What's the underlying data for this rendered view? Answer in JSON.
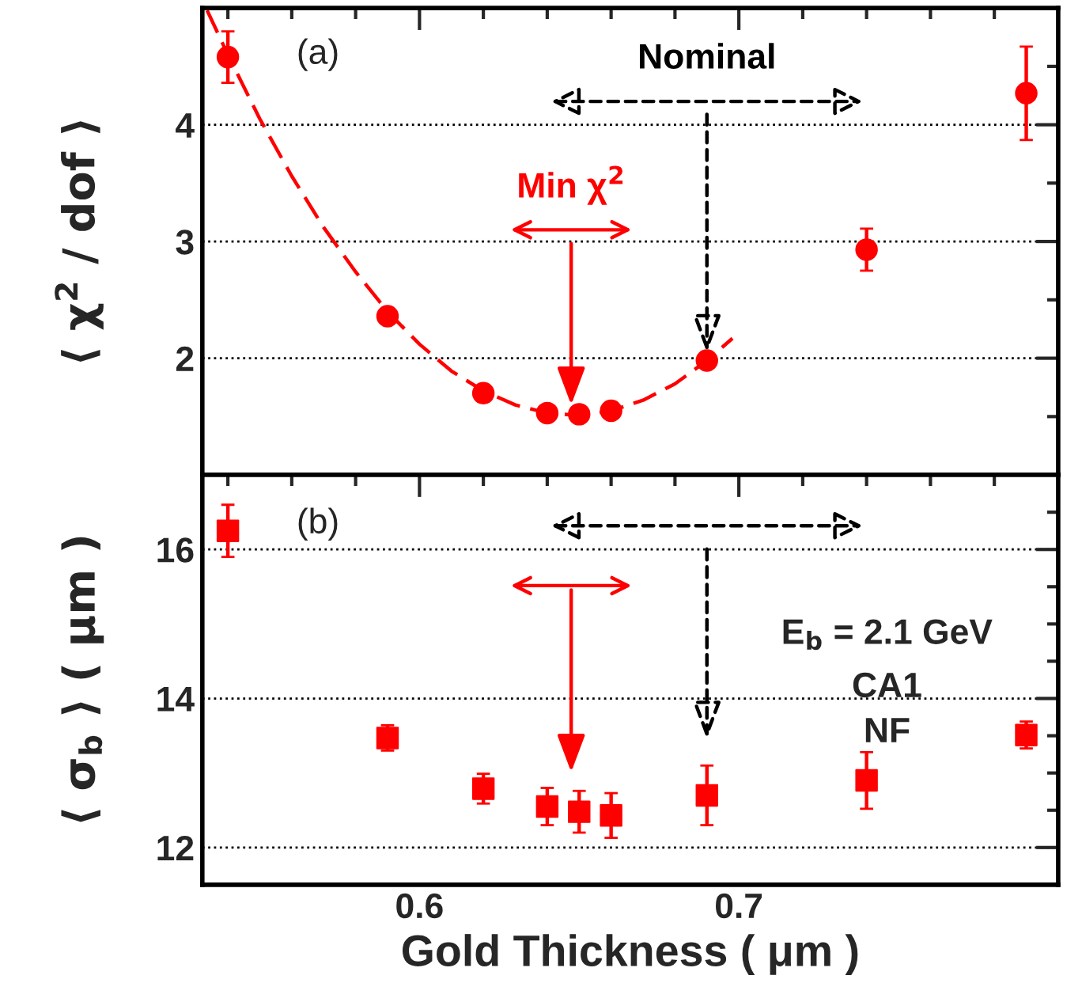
{
  "chart_data": [
    {
      "type": "scatter",
      "ylabel": "⟨ χ$^{2}$ / dof ⟩",
      "xlim": [
        0.532,
        0.8
      ],
      "ylim": [
        1,
        5
      ],
      "yticks": [
        {
          "value": 1.5,
          "label": null
        },
        2,
        {
          "value": 2.5,
          "label": null
        },
        3,
        {
          "value": 3.5,
          "label": null
        },
        4,
        {
          "value": 4.5,
          "label": null
        }
      ],
      "tick_labels": "y",
      "grid": "y",
      "series": [
        {
          "color": "#ff0000",
          "marker": "circle",
          "x": [
            0.54,
            0.59,
            0.62,
            0.64,
            0.65,
            0.66,
            0.69,
            0.74,
            0.79
          ],
          "values": [
            4.58,
            2.36,
            1.7,
            1.53,
            1.52,
            1.55,
            1.98,
            2.93,
            4.27
          ],
          "errors": [
            0.22,
            null,
            null,
            null,
            null,
            null,
            null,
            0.18,
            0.4
          ]
        },
        {
          "type": "line",
          "color": "#ff0000",
          "marker": "none",
          "line_style": "dashed",
          "x": [
            0.5335,
            0.54,
            0.55,
            0.56,
            0.57,
            0.58,
            0.59,
            0.6,
            0.61,
            0.62,
            0.63,
            0.64,
            0.65,
            0.66,
            0.67,
            0.68,
            0.69,
            0.698
          ],
          "values": [
            4.98,
            4.6,
            4.05,
            3.56,
            3.12,
            2.74,
            2.4,
            2.12,
            1.89,
            1.72,
            1.6,
            1.53,
            1.51,
            1.55,
            1.64,
            1.78,
            1.98,
            2.17
          ]
        }
      ],
      "annotations": [
        "(a)",
        {
          "text": "Min χ$^{2}$",
          "x": 0.6475,
          "y": 1.6
        },
        {
          "text": "Nominal",
          "x": 0.69,
          "y": 2.05
        }
      ]
    },
    {
      "type": "scatter",
      "xlabel": "Gold Thickness ( μm )",
      "ylabel": "⟨ σ$_{b}$ ⟩ ( μm )",
      "xlim": [
        0.532,
        0.8
      ],
      "ylim": [
        11.5,
        17
      ],
      "xticks": [
        {
          "value": 0.54,
          "label": null
        },
        {
          "value": 0.56,
          "label": null
        },
        {
          "value": 0.58,
          "label": null
        },
        0.6,
        {
          "value": 0.62,
          "label": null
        },
        {
          "value": 0.64,
          "label": null
        },
        {
          "value": 0.66,
          "label": null
        },
        {
          "value": 0.68,
          "label": null
        },
        0.7,
        {
          "value": 0.72,
          "label": null
        },
        {
          "value": 0.74,
          "label": null
        },
        {
          "value": 0.76,
          "label": null
        },
        {
          "value": 0.78,
          "label": null
        }
      ],
      "yticks": [
        12,
        {
          "value": 12.5,
          "label": null
        },
        {
          "value": 13,
          "label": null
        },
        {
          "value": 13.5,
          "label": null
        },
        14,
        {
          "value": 14.5,
          "label": null
        },
        {
          "value": 15,
          "label": null
        },
        {
          "value": 15.5,
          "label": null
        },
        16,
        {
          "value": 16.5,
          "label": null
        }
      ],
      "grid": "y",
      "series": [
        {
          "color": "#ff0000",
          "marker": "square",
          "x": [
            0.54,
            0.59,
            0.62,
            0.64,
            0.65,
            0.66,
            0.69,
            0.74,
            0.79
          ],
          "values": [
            16.25,
            13.47,
            12.79,
            12.55,
            12.48,
            12.43,
            12.7,
            12.9,
            13.51
          ],
          "errors": [
            0.35,
            0.17,
            0.2,
            0.25,
            0.28,
            0.3,
            0.4,
            0.38,
            0.18
          ]
        }
      ],
      "annotations": [
        "(b)",
        "E$_{b}$ = 2.1 GeV",
        "CA1",
        "NF"
      ]
    }
  ]
}
